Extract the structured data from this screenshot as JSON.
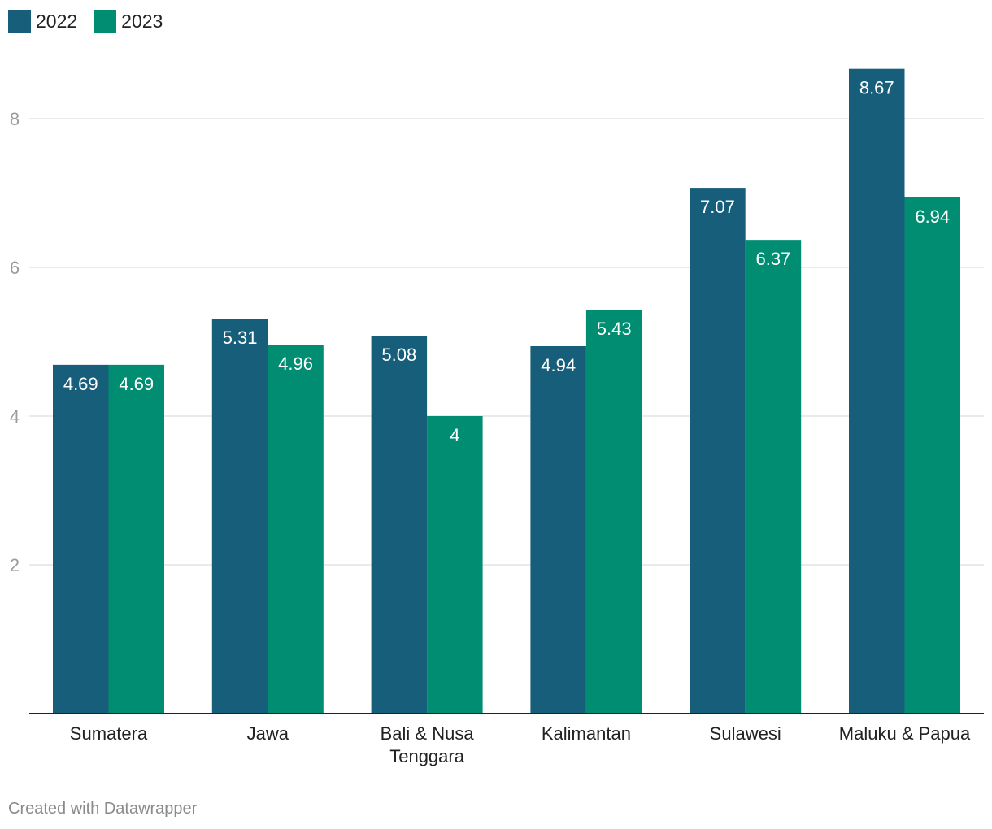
{
  "chart_data": {
    "type": "bar",
    "categories": [
      [
        "Sumatera"
      ],
      [
        "Jawa"
      ],
      [
        "Bali & Nusa",
        "Tenggara"
      ],
      [
        "Kalimantan"
      ],
      [
        "Sulawesi"
      ],
      [
        "Maluku & Papua"
      ]
    ],
    "series": [
      {
        "name": "2022",
        "color": "#175e7a",
        "values": [
          4.69,
          5.31,
          5.08,
          4.94,
          7.07,
          8.67
        ],
        "labels": [
          "4.69",
          "5.31",
          "5.08",
          "4.94",
          "7.07",
          "8.67"
        ]
      },
      {
        "name": "2023",
        "color": "#008d72",
        "values": [
          4.69,
          4.96,
          4.0,
          5.43,
          6.37,
          6.94
        ],
        "labels": [
          "4.69",
          "4.96",
          "4",
          "5.43",
          "6.37",
          "6.94"
        ]
      }
    ],
    "yticks": [
      2,
      4,
      6,
      8
    ],
    "ylim": [
      0,
      9.0
    ],
    "grid": true,
    "legend_position": "top-left"
  },
  "legend": {
    "series1": "2022",
    "series2": "2023"
  },
  "footer": {
    "credit": "Created with Datawrapper"
  }
}
